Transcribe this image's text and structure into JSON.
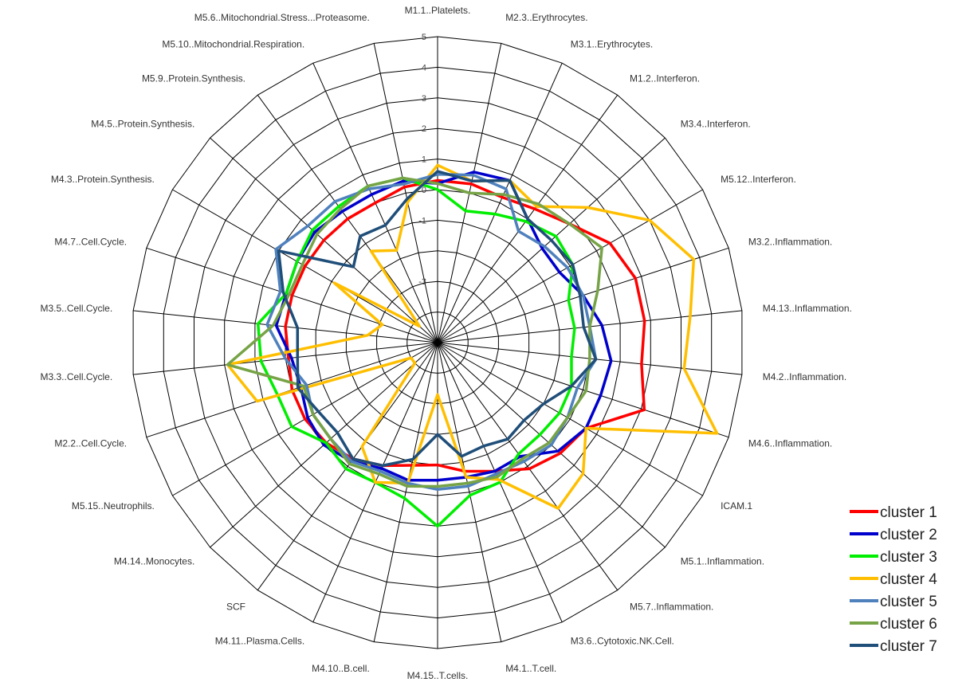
{
  "chart_data": {
    "type": "radar",
    "title": "",
    "axes": [
      "M1.1..Platelets.",
      "M2.3..Erythrocytes.",
      "M3.1..Erythrocytes.",
      "M1.2..Interferon.",
      "M3.4..Interferon.",
      "M5.12..Interferon.",
      "M3.2..Inflammation.",
      "M4.13..Inflammation.",
      "M4.2..Inflammation.",
      "M4.6..Inflammation.",
      "ICAM.1",
      "M5.1..Inflammation.",
      "M5.7..Inflammation.",
      "M3.6..Cytotoxic.NK.Cell.",
      "M4.1..T.cell.",
      "M4.15..T.cells.",
      "M4.10..B.cell.",
      "M4.11..Plasma.Cells.",
      "SCF",
      "M4.14..Monocytes.",
      "M5.15..Neutrophils.",
      "M2.2..Cell.Cycle.",
      "M3.3..Cell.Cycle.",
      "M3.5..Cell.Cycle.",
      "M4.7..Cell.Cycle.",
      "M4.3..Protein.Synthesis.",
      "M4.5..Protein.Synthesis.",
      "M5.9..Protein.Synthesis.",
      "M5.10..Mitochondrial.Respiration.",
      "M5.6..Mitochondrial.Stress...Proteasome."
    ],
    "r_ticks": [
      {
        "value": -5,
        "label": ""
      },
      {
        "value": -4,
        "label": ""
      },
      {
        "value": -3,
        "label": "-3"
      },
      {
        "value": -2,
        "label": ""
      },
      {
        "value": -1,
        "label": "-1"
      },
      {
        "value": 0,
        "label": "0"
      },
      {
        "value": 1,
        "label": "1"
      },
      {
        "value": 2,
        "label": "2"
      },
      {
        "value": 3,
        "label": "3"
      },
      {
        "value": 4,
        "label": "4"
      },
      {
        "value": 5,
        "label": "5"
      }
    ],
    "r_range": [
      -5,
      5
    ],
    "grid": true,
    "legend_position": "bottom-right",
    "series": [
      {
        "name": "cluster 1",
        "color": "#ff0000",
        "values": [
          0.3,
          0.3,
          0.2,
          0.4,
          0.8,
          1.5,
          1.8,
          1.8,
          1.7,
          2.1,
          0.6,
          0.4,
          0.1,
          -0.4,
          -0.7,
          -1.0,
          -0.9,
          -0.6,
          -0.3,
          -0.1,
          0.0,
          0.0,
          -0.1,
          0.0,
          0.0,
          0.0,
          0.0,
          0.0,
          0.0,
          0.2
        ]
      },
      {
        "name": "cluster 2",
        "color": "#0000cc",
        "values": [
          0.2,
          0.7,
          0.8,
          0.0,
          -0.4,
          -0.4,
          0.0,
          0.4,
          0.7,
          0.6,
          0.6,
          0.3,
          -0.4,
          -0.4,
          -0.5,
          -0.5,
          -0.4,
          -0.5,
          -0.2,
          0.0,
          -0.1,
          -0.3,
          -0.2,
          0.3,
          0.2,
          0.3,
          0.4,
          0.3,
          0.3,
          0.4
        ]
      },
      {
        "name": "cluster 3",
        "color": "#00ee00",
        "values": [
          0.0,
          -0.6,
          -0.4,
          -0.1,
          0.2,
          0.1,
          -0.5,
          -0.5,
          -0.6,
          -0.4,
          -0.4,
          -0.5,
          -0.5,
          0.0,
          0.1,
          1.0,
          0.2,
          0.0,
          0.1,
          -0.1,
          0.5,
          0.5,
          0.8,
          0.9,
          0.2,
          0.3,
          0.5,
          0.5,
          0.6,
          0.5
        ]
      },
      {
        "name": "cluster 4",
        "color": "#ffbf00",
        "values": [
          0.8,
          0.4,
          0.8,
          0.5,
          1.6,
          3.0,
          3.8,
          3.3,
          3.1,
          4.6,
          0.6,
          1.4,
          1.7,
          -0.1,
          -0.5,
          -3.3,
          -0.3,
          0.0,
          -0.8,
          -4.0,
          -4.0,
          1.2,
          1.9,
          -2.7,
          -3.1,
          -1.1,
          -4.2,
          -1.3,
          -1.7,
          -0.3
        ]
      },
      {
        "name": "cluster 5",
        "color": "#4f81bd",
        "values": [
          0.5,
          0.6,
          0.5,
          -0.5,
          -0.3,
          -0.1,
          0.0,
          0.0,
          0.2,
          -0.2,
          -0.1,
          0.0,
          -0.2,
          -0.3,
          -0.2,
          -0.2,
          -0.3,
          -0.4,
          -0.2,
          -0.3,
          -0.3,
          -0.5,
          0.0,
          0.6,
          0.4,
          1.1,
          0.7,
          0.7,
          0.5,
          0.3
        ]
      },
      {
        "name": "cluster 6",
        "color": "#77a347",
        "values": [
          0.2,
          0.0,
          0.3,
          0.6,
          0.8,
          1.2,
          0.5,
          0.0,
          0.0,
          0.1,
          -0.1,
          -0.1,
          -0.3,
          -0.2,
          -0.3,
          -0.3,
          -0.2,
          -0.3,
          -0.1,
          -0.3,
          -0.3,
          -0.4,
          1.9,
          0.4,
          0.1,
          0.1,
          0.3,
          0.4,
          0.6,
          0.5
        ]
      },
      {
        "name": "cluster 7",
        "color": "#1f4e79",
        "values": [
          0.6,
          0.4,
          0.8,
          0.0,
          0.0,
          0.1,
          -0.1,
          -0.2,
          0.2,
          -0.4,
          -1.0,
          -1.2,
          -1.1,
          -1.3,
          -1.2,
          -2.0,
          -1.1,
          -0.6,
          -0.3,
          -0.6,
          -0.5,
          -0.2,
          -0.4,
          -0.4,
          0.3,
          1.0,
          -1.3,
          -0.7,
          -0.8,
          -0.2
        ]
      }
    ]
  }
}
